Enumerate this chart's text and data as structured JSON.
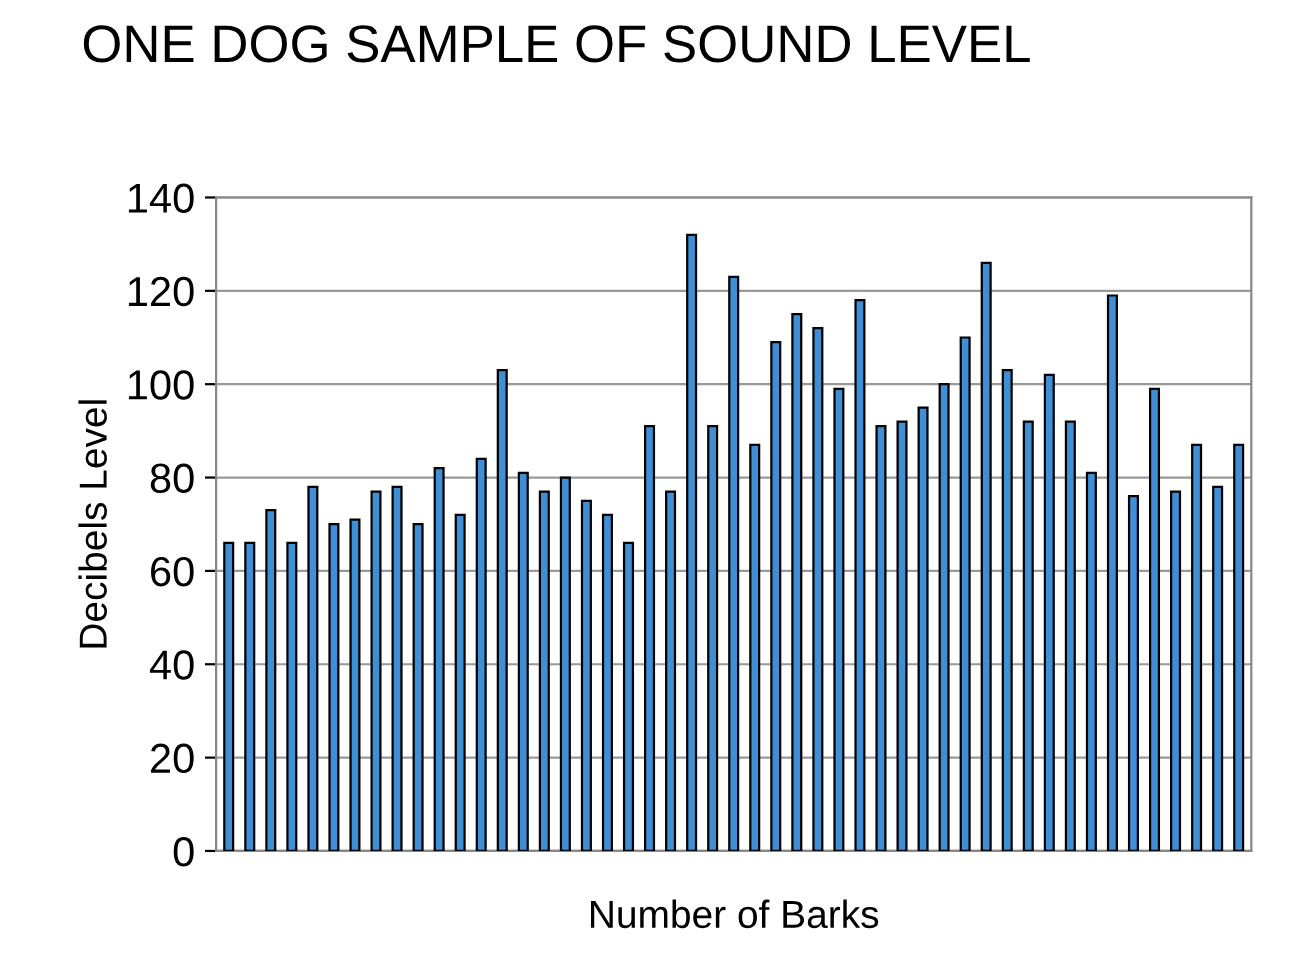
{
  "chart_data": {
    "type": "bar",
    "title": "ONE DOG SAMPLE OF SOUND LEVEL",
    "xlabel": "Number of Barks",
    "ylabel": "Decibels Level",
    "categories": [
      null,
      null,
      null,
      null,
      null,
      null,
      null,
      null,
      null,
      null,
      null,
      null,
      null,
      null,
      null,
      null,
      null,
      null,
      null,
      null,
      null,
      null,
      null,
      null,
      null,
      null,
      null,
      null,
      null,
      null,
      null,
      null,
      null,
      null,
      null,
      null,
      null,
      null,
      null,
      null,
      null,
      null,
      null,
      null,
      null,
      null,
      null,
      null,
      null
    ],
    "values": [
      66,
      66,
      73,
      66,
      78,
      70,
      71,
      77,
      78,
      70,
      82,
      72,
      84,
      103,
      81,
      77,
      80,
      75,
      72,
      66,
      91,
      77,
      132,
      91,
      123,
      87,
      109,
      115,
      112,
      99,
      118,
      91,
      92,
      95,
      100,
      110,
      126,
      103,
      92,
      102,
      92,
      81,
      119,
      76,
      99,
      77,
      87,
      78,
      87
    ],
    "color": "#3f8fd6",
    "ylim": [
      0,
      140
    ],
    "yticks": [
      0,
      20,
      40,
      60,
      80,
      100,
      120,
      140
    ],
    "grid": "y"
  }
}
